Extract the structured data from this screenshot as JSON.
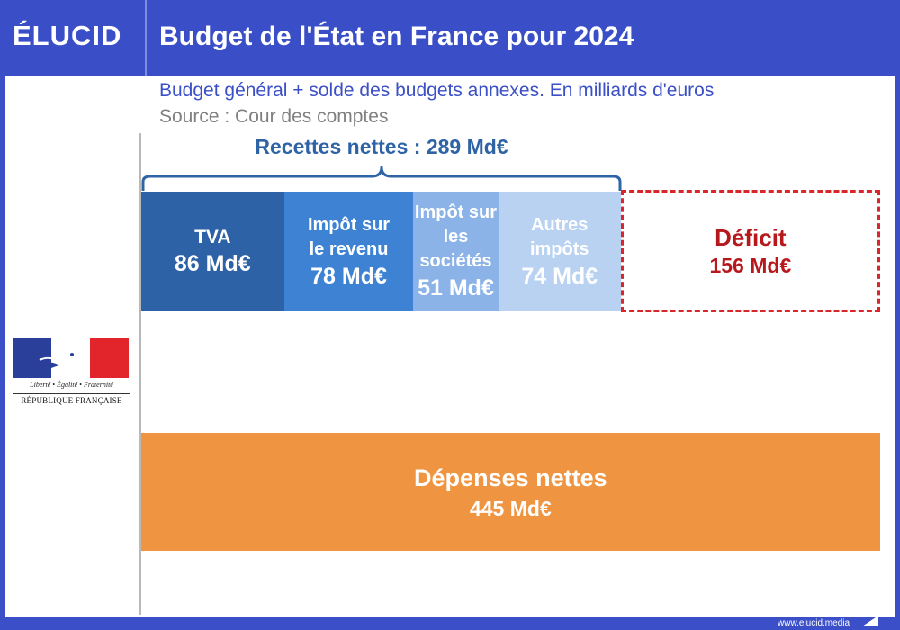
{
  "header": {
    "logo": "ÉLUCID",
    "title": "Budget de l'État en France pour 2024"
  },
  "subtitle": "Budget général + solde des budgets annexes. En milliards d'euros",
  "source": "Source : Cour des comptes",
  "emblem": {
    "motto": "Liberté • Égalité • Fraternité",
    "name": "RÉPUBLIQUE FRANÇAISE"
  },
  "footer": {
    "link": "www.elucid.media"
  },
  "chart_data": {
    "type": "bar",
    "orientation": "horizontal",
    "stacked": true,
    "title": "Budget de l'État en France pour 2024",
    "subtitle": "Budget général + solde des budgets annexes. En milliards d'euros",
    "unit": "Md€",
    "recettes": {
      "label": "Recettes nettes : 289 Md€",
      "total": 289,
      "segments": [
        {
          "name": "TVA",
          "label_lines": [
            "TVA"
          ],
          "value": 86,
          "value_label": "86 Md€",
          "color": "#2d62a6"
        },
        {
          "name": "Impôt sur le revenu",
          "label_lines": [
            "Impôt sur",
            "le revenu"
          ],
          "value": 78,
          "value_label": "78 Md€",
          "color": "#3e82d3"
        },
        {
          "name": "Impôt sur les sociétés",
          "label_lines": [
            "Impôt sur",
            "les sociétés"
          ],
          "value": 51,
          "value_label": "51 Md€",
          "color": "#8cb3e8"
        },
        {
          "name": "Autres impôts",
          "label_lines": [
            "Autres",
            "impôts"
          ],
          "value": 74,
          "value_label": "74 Md€",
          "color": "#b9d2f2"
        }
      ]
    },
    "deficit": {
      "name": "Déficit",
      "value": 156,
      "value_label": "156 Md€",
      "color": "#d9262b"
    },
    "depenses": {
      "name": "Dépenses nettes",
      "value": 445,
      "value_label": "445 Md€",
      "color": "#ef9440"
    }
  }
}
